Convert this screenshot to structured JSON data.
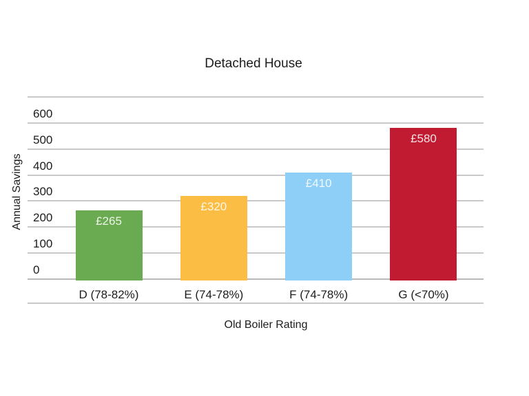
{
  "chart_data": {
    "type": "bar",
    "title": "Detached House",
    "xlabel": "Old Boiler Rating",
    "ylabel": "Annual Savings",
    "categories": [
      "D (78-82%)",
      "E (74-78%)",
      "F (74-78%)",
      "G (<70%)"
    ],
    "values": [
      265,
      320,
      410,
      580
    ],
    "bar_labels": [
      "£265",
      "£320",
      "£410",
      "£580"
    ],
    "bar_colors": [
      "#6aaa50",
      "#fbbd44",
      "#8ecff7",
      "#c01b30"
    ],
    "y_ticks": [
      0,
      100,
      200,
      300,
      400,
      500,
      600
    ],
    "ylim": [
      0,
      700
    ],
    "gridline_values": [
      0,
      100,
      200,
      300,
      400,
      500,
      600,
      700
    ],
    "grid": true,
    "legend": "none"
  },
  "colors": {
    "background": "#ffffff",
    "grid": "#c9c9c9",
    "baseline": "#b9b9b9",
    "text": "#1c1c1c",
    "value_label": "rgba(255,255,255,0.88)"
  }
}
